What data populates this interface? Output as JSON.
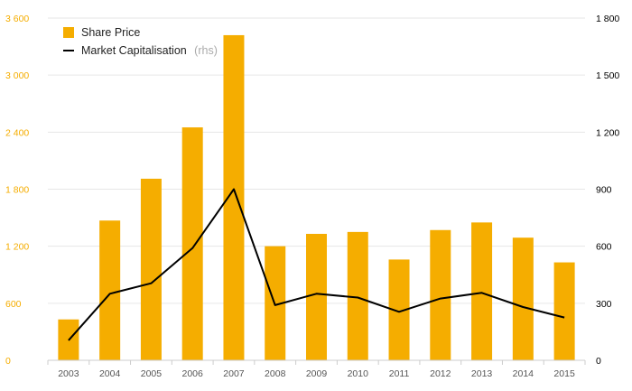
{
  "chart_data": {
    "type": "bar",
    "categories": [
      "2003",
      "2004",
      "2005",
      "2006",
      "2007",
      "2008",
      "2009",
      "2010",
      "2011",
      "2012",
      "2013",
      "2014",
      "2015"
    ],
    "series": [
      {
        "name": "Share Price",
        "type": "bar",
        "axis": "left",
        "color": "#f5ad00",
        "values": [
          430,
          1470,
          1910,
          2450,
          3420,
          1200,
          1330,
          1350,
          1060,
          1370,
          1450,
          1290,
          1030
        ]
      },
      {
        "name": "Market Capitalisation",
        "axis_note": "(rhs)",
        "type": "line",
        "axis": "right",
        "color": "#000000",
        "values": [
          105,
          350,
          405,
          590,
          900,
          290,
          350,
          330,
          255,
          325,
          355,
          280,
          225
        ]
      }
    ],
    "y_left": {
      "range": [
        0,
        3600
      ],
      "ticks": [
        0,
        600,
        1200,
        1800,
        2400,
        3000,
        3600
      ],
      "tick_labels": [
        "0",
        "600",
        "1 200",
        "1 800",
        "2 400",
        "3 000",
        "3 600"
      ],
      "color": "#f5ad00"
    },
    "y_right": {
      "range": [
        0,
        1800
      ],
      "ticks": [
        0,
        300,
        600,
        900,
        1200,
        1500,
        1800
      ],
      "tick_labels": [
        "0",
        "300",
        "600",
        "900",
        "1 200",
        "1 500",
        "1 800"
      ],
      "color": "#000000"
    },
    "grid": true,
    "legend_position": "top-left"
  }
}
